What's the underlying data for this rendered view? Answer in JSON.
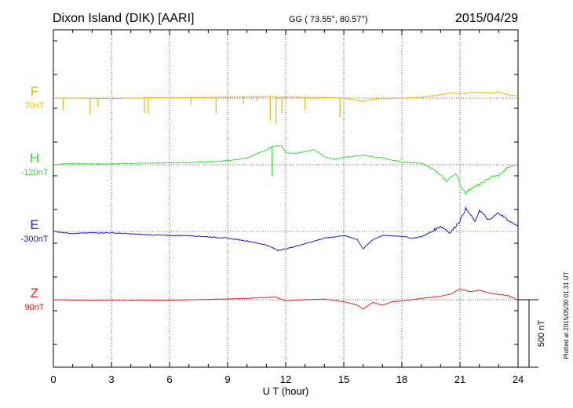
{
  "header": {
    "station": "Dixon Island (DIK)  [AARI]",
    "coords": "GG ( 73.55°,  80.57°)",
    "date": "2015/04/29"
  },
  "footer": {
    "plotted": "Plotted at 2015/05/30 01:31  UT"
  },
  "colors": {
    "F": "#f0b400",
    "H": "#33dd33",
    "E": "#1a1acc",
    "Z": "#e02020"
  },
  "chart_data": {
    "type": "line",
    "title": "Dixon Island (DIK)  [AARI]",
    "xlabel": "U T (hour)",
    "ylabel": "",
    "xlim": [
      0,
      24
    ],
    "x_ticks": [
      "0",
      "3",
      "6",
      "9",
      "12",
      "15",
      "18",
      "21",
      "24"
    ],
    "scale_bar": "500 nT",
    "grid": true,
    "series": [
      {
        "name": "F",
        "baseline": "70nT",
        "points": [
          [
            0,
            0
          ],
          [
            1,
            0
          ],
          [
            2,
            -2
          ],
          [
            3,
            -4
          ],
          [
            4,
            0
          ],
          [
            5,
            3
          ],
          [
            6,
            2
          ],
          [
            7,
            3
          ],
          [
            8,
            5
          ],
          [
            9,
            6
          ],
          [
            10,
            8
          ],
          [
            11,
            10
          ],
          [
            11.3,
            15
          ],
          [
            11.6,
            5
          ],
          [
            12,
            8
          ],
          [
            13,
            5
          ],
          [
            14,
            4
          ],
          [
            15,
            0
          ],
          [
            15.8,
            -20
          ],
          [
            16,
            -25
          ],
          [
            16.5,
            -8
          ],
          [
            17,
            -5
          ],
          [
            18,
            0
          ],
          [
            19,
            5
          ],
          [
            20,
            25
          ],
          [
            20.6,
            40
          ],
          [
            21,
            30
          ],
          [
            21.5,
            40
          ],
          [
            22,
            45
          ],
          [
            22.5,
            35
          ],
          [
            23,
            45
          ],
          [
            23.5,
            25
          ],
          [
            24,
            15
          ]
        ],
        "spikes": [
          [
            0.5,
            -90
          ],
          [
            1.9,
            -120
          ],
          [
            2.3,
            -60
          ],
          [
            4.7,
            -110
          ],
          [
            4.9,
            -120
          ],
          [
            7.1,
            -55
          ],
          [
            8.4,
            -120
          ],
          [
            9.8,
            -50
          ],
          [
            10.5,
            -30
          ],
          [
            11.2,
            -180
          ],
          [
            11.5,
            -200
          ],
          [
            11.8,
            -120
          ],
          [
            13.0,
            -90
          ],
          [
            14.8,
            -140
          ]
        ]
      },
      {
        "name": "H",
        "baseline": "-120nT",
        "points": [
          [
            0,
            0
          ],
          [
            1,
            10
          ],
          [
            2,
            5
          ],
          [
            3,
            8
          ],
          [
            4,
            10
          ],
          [
            5,
            12
          ],
          [
            6,
            15
          ],
          [
            7,
            17
          ],
          [
            8,
            20
          ],
          [
            9,
            30
          ],
          [
            10,
            50
          ],
          [
            10.5,
            80
          ],
          [
            11,
            110
          ],
          [
            11.4,
            140
          ],
          [
            11.8,
            140
          ],
          [
            12,
            90
          ],
          [
            12.5,
            85
          ],
          [
            13,
            100
          ],
          [
            13.5,
            110
          ],
          [
            14,
            60
          ],
          [
            14.5,
            40
          ],
          [
            15,
            55
          ],
          [
            16,
            70
          ],
          [
            17,
            50
          ],
          [
            18,
            20
          ],
          [
            19,
            10
          ],
          [
            19.5,
            -20
          ],
          [
            20,
            -80
          ],
          [
            20.3,
            -120
          ],
          [
            20.8,
            -60
          ],
          [
            21,
            -150
          ],
          [
            21.3,
            -210
          ],
          [
            21.6,
            -170
          ],
          [
            22,
            -150
          ],
          [
            22.6,
            -90
          ],
          [
            23,
            -80
          ],
          [
            23.5,
            -20
          ],
          [
            24,
            5
          ]
        ],
        "spikes": [
          [
            11.3,
            -220
          ]
        ]
      },
      {
        "name": "E",
        "baseline": "-300nT",
        "points": [
          [
            0,
            0
          ],
          [
            1,
            -15
          ],
          [
            2,
            -10
          ],
          [
            3,
            -10
          ],
          [
            4,
            -18
          ],
          [
            5,
            -25
          ],
          [
            6,
            -30
          ],
          [
            7,
            -30
          ],
          [
            8,
            -40
          ],
          [
            9,
            -50
          ],
          [
            10,
            -70
          ],
          [
            11,
            -100
          ],
          [
            11.6,
            -140
          ],
          [
            12,
            -130
          ],
          [
            13,
            -90
          ],
          [
            14,
            -50
          ],
          [
            15,
            -30
          ],
          [
            15.7,
            -60
          ],
          [
            16,
            -130
          ],
          [
            16.5,
            -60
          ],
          [
            17,
            -30
          ],
          [
            18,
            -35
          ],
          [
            18.5,
            -50
          ],
          [
            19,
            -40
          ],
          [
            19.5,
            -5
          ],
          [
            20,
            40
          ],
          [
            20.5,
            -10
          ],
          [
            21,
            80
          ],
          [
            21.3,
            170
          ],
          [
            21.8,
            70
          ],
          [
            22,
            160
          ],
          [
            22.5,
            80
          ],
          [
            23,
            140
          ],
          [
            23.5,
            80
          ],
          [
            24,
            40
          ]
        ],
        "spikes": []
      },
      {
        "name": "Z",
        "baseline": "90nT",
        "points": [
          [
            0,
            0
          ],
          [
            2,
            -5
          ],
          [
            4,
            -5
          ],
          [
            6,
            -3
          ],
          [
            8,
            2
          ],
          [
            10,
            10
          ],
          [
            11.5,
            20
          ],
          [
            12,
            -10
          ],
          [
            13,
            0
          ],
          [
            14,
            5
          ],
          [
            15,
            -15
          ],
          [
            15.7,
            -40
          ],
          [
            16,
            -70
          ],
          [
            16.5,
            -20
          ],
          [
            17,
            -40
          ],
          [
            17.5,
            -15
          ],
          [
            18,
            -10
          ],
          [
            19,
            10
          ],
          [
            20,
            25
          ],
          [
            20.5,
            40
          ],
          [
            21,
            80
          ],
          [
            21.5,
            60
          ],
          [
            22,
            70
          ],
          [
            22.5,
            50
          ],
          [
            23,
            40
          ],
          [
            23.5,
            30
          ],
          [
            24,
            -5
          ]
        ],
        "spikes": []
      }
    ]
  }
}
